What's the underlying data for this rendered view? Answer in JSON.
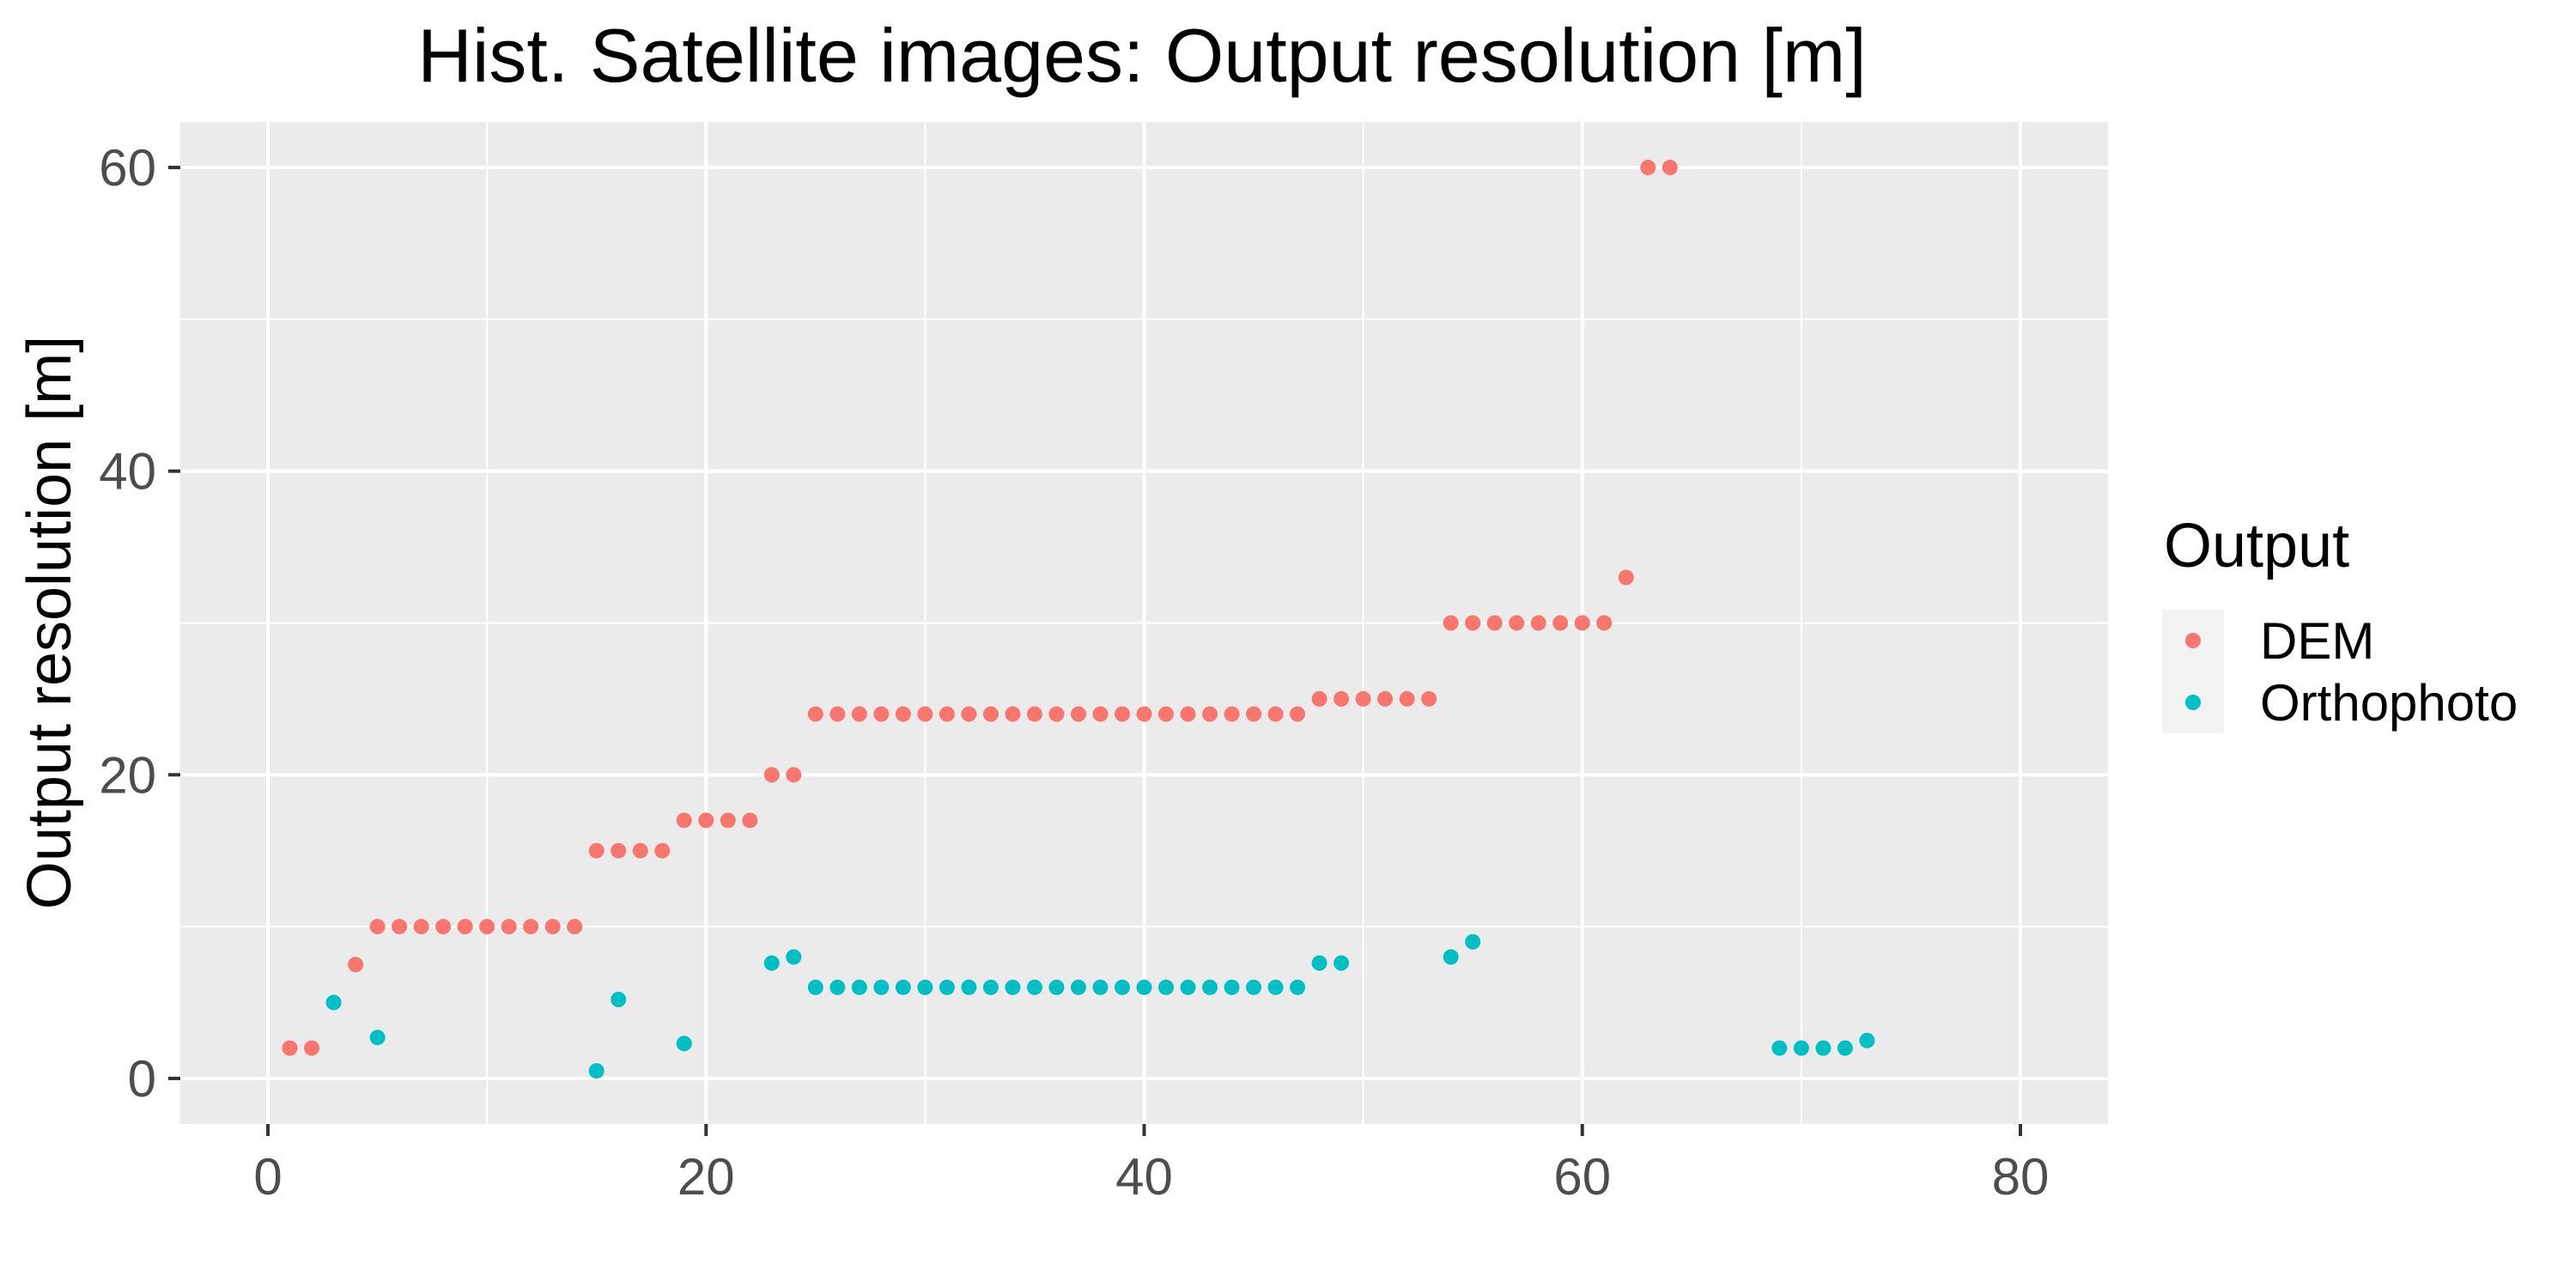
{
  "chart_data": {
    "type": "scatter",
    "title": "Hist. Satellite images: Output resolution [m]",
    "xlabel": "",
    "ylabel": "Output resolution [m]",
    "xlim": [
      -4,
      84
    ],
    "ylim": [
      -3,
      63
    ],
    "x_ticks": [
      0,
      20,
      40,
      60,
      80
    ],
    "y_ticks": [
      0,
      20,
      40,
      60
    ],
    "grid": true,
    "legend": {
      "title": "Output",
      "placement": "right"
    },
    "series": [
      {
        "name": "DEM",
        "color": "#F8766D",
        "points": [
          [
            1,
            2
          ],
          [
            2,
            2
          ],
          [
            4,
            7.5
          ],
          [
            5,
            10
          ],
          [
            6,
            10
          ],
          [
            7,
            10
          ],
          [
            8,
            10
          ],
          [
            9,
            10
          ],
          [
            10,
            10
          ],
          [
            11,
            10
          ],
          [
            12,
            10
          ],
          [
            13,
            10
          ],
          [
            14,
            10
          ],
          [
            15,
            15
          ],
          [
            16,
            15
          ],
          [
            17,
            15
          ],
          [
            18,
            15
          ],
          [
            19,
            17
          ],
          [
            20,
            17
          ],
          [
            21,
            17
          ],
          [
            22,
            17
          ],
          [
            23,
            20
          ],
          [
            24,
            20
          ],
          [
            25,
            24
          ],
          [
            26,
            24
          ],
          [
            27,
            24
          ],
          [
            28,
            24
          ],
          [
            29,
            24
          ],
          [
            30,
            24
          ],
          [
            31,
            24
          ],
          [
            32,
            24
          ],
          [
            33,
            24
          ],
          [
            34,
            24
          ],
          [
            35,
            24
          ],
          [
            36,
            24
          ],
          [
            37,
            24
          ],
          [
            38,
            24
          ],
          [
            39,
            24
          ],
          [
            40,
            24
          ],
          [
            41,
            24
          ],
          [
            42,
            24
          ],
          [
            43,
            24
          ],
          [
            44,
            24
          ],
          [
            45,
            24
          ],
          [
            46,
            24
          ],
          [
            47,
            24
          ],
          [
            48,
            25
          ],
          [
            49,
            25
          ],
          [
            50,
            25
          ],
          [
            51,
            25
          ],
          [
            52,
            25
          ],
          [
            53,
            25
          ],
          [
            54,
            30
          ],
          [
            55,
            30
          ],
          [
            56,
            30
          ],
          [
            57,
            30
          ],
          [
            58,
            30
          ],
          [
            59,
            30
          ],
          [
            60,
            30
          ],
          [
            61,
            30
          ],
          [
            62,
            33
          ],
          [
            63,
            60
          ],
          [
            64,
            60
          ]
        ]
      },
      {
        "name": "Orthophoto",
        "color": "#00BFC4",
        "points": [
          [
            3,
            5
          ],
          [
            5,
            2.7
          ],
          [
            15,
            0.5
          ],
          [
            16,
            5.2
          ],
          [
            19,
            2.3
          ],
          [
            23,
            7.6
          ],
          [
            24,
            8
          ],
          [
            25,
            6
          ],
          [
            26,
            6
          ],
          [
            27,
            6
          ],
          [
            28,
            6
          ],
          [
            29,
            6
          ],
          [
            30,
            6
          ],
          [
            31,
            6
          ],
          [
            32,
            6
          ],
          [
            33,
            6
          ],
          [
            34,
            6
          ],
          [
            35,
            6
          ],
          [
            36,
            6
          ],
          [
            37,
            6
          ],
          [
            38,
            6
          ],
          [
            39,
            6
          ],
          [
            40,
            6
          ],
          [
            41,
            6
          ],
          [
            42,
            6
          ],
          [
            43,
            6
          ],
          [
            44,
            6
          ],
          [
            45,
            6
          ],
          [
            46,
            6
          ],
          [
            47,
            6
          ],
          [
            48,
            7.6
          ],
          [
            49,
            7.6
          ],
          [
            54,
            8
          ],
          [
            55,
            9
          ],
          [
            69,
            2
          ],
          [
            70,
            2
          ],
          [
            71,
            2
          ],
          [
            72,
            2
          ],
          [
            73,
            2.5
          ]
        ]
      }
    ]
  },
  "style": {
    "panel_background": "#EBEBEB",
    "gridline_color": "#FFFFFF",
    "legend_key_background": "#F2F2F2"
  }
}
